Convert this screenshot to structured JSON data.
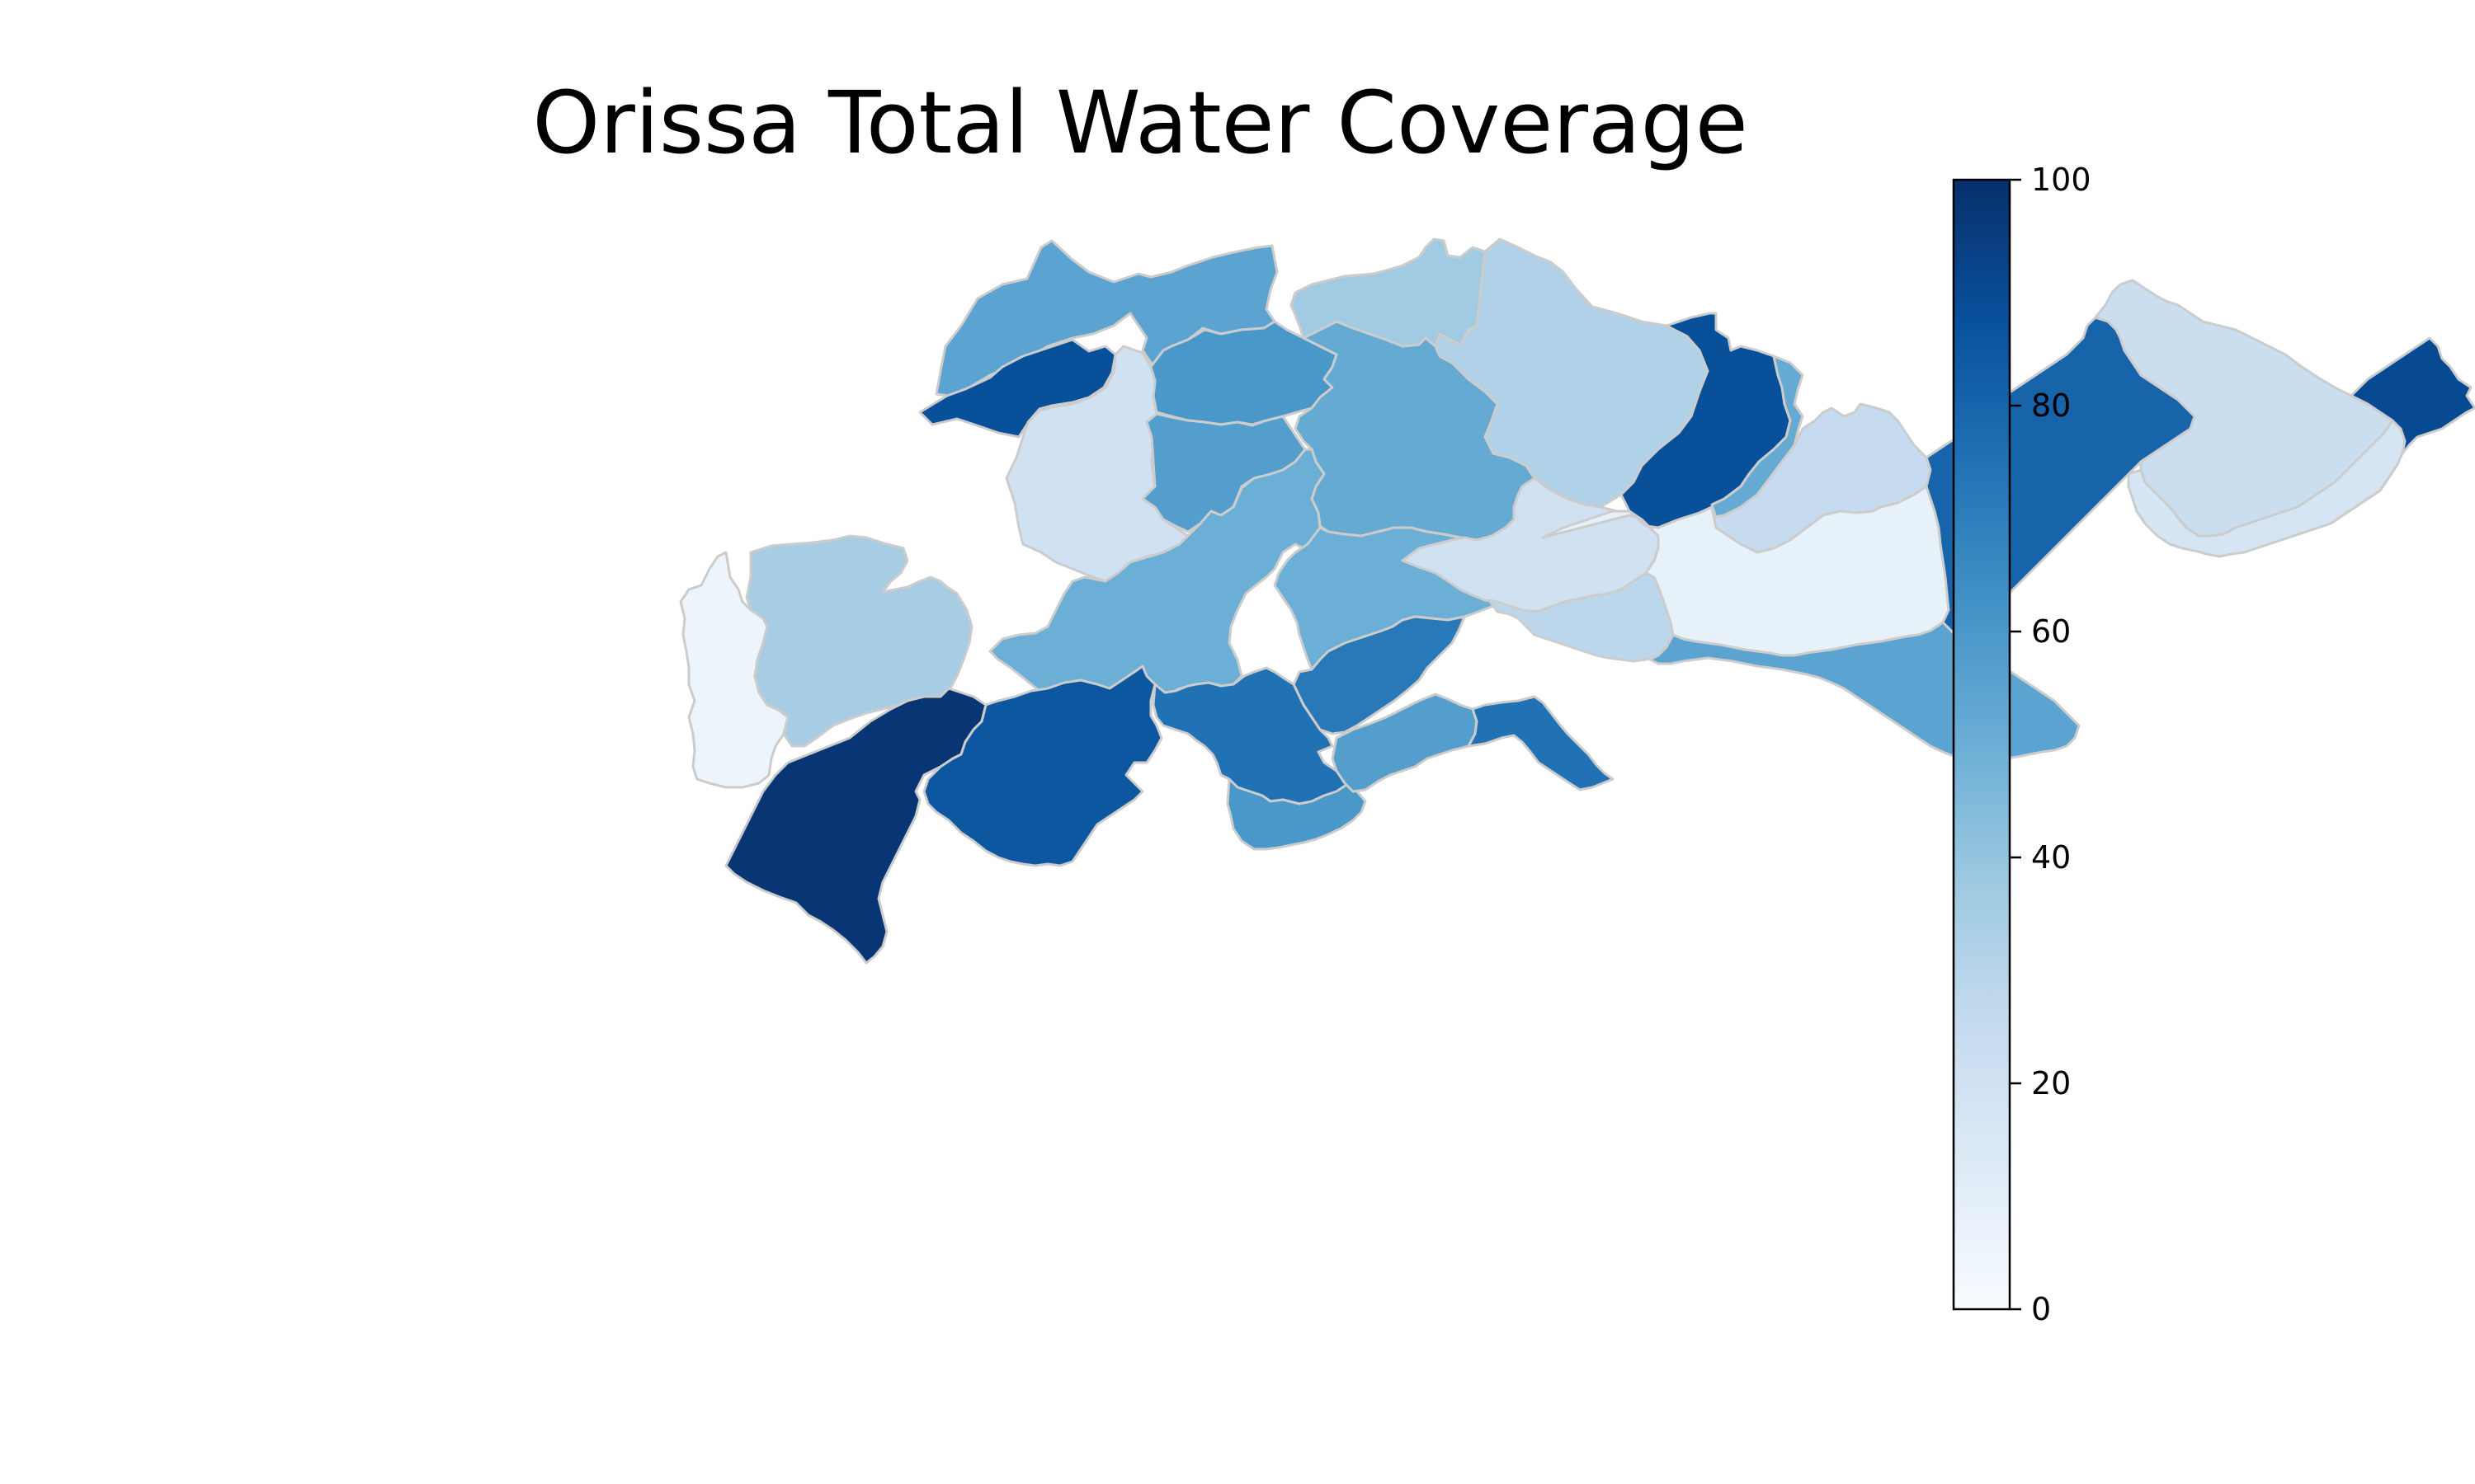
{
  "title": "Orissa Total Water Coverage",
  "colorbar": {
    "min": 0,
    "max": 100,
    "ticks": [
      0,
      20,
      40,
      60,
      80,
      100
    ],
    "colormap": [
      "#f7fbff",
      "#deebf7",
      "#c6dbef",
      "#9ecae1",
      "#6baed6",
      "#4292c6",
      "#2171b5",
      "#08519c",
      "#08306b"
    ]
  },
  "chart_data": {
    "type": "choropleth",
    "title": "Orissa Total Water Coverage",
    "value_range": [
      0,
      100
    ],
    "regions": [
      {
        "value": 55
      },
      {
        "value": 88
      },
      {
        "value": 60
      },
      {
        "value": 20
      },
      {
        "value": 57
      },
      {
        "value": 52
      },
      {
        "value": 32
      },
      {
        "value": 88
      },
      {
        "value": 52
      },
      {
        "value": 25
      },
      {
        "value": 37
      },
      {
        "value": 50
      },
      {
        "value": 50
      },
      {
        "value": 72
      },
      {
        "value": 20
      },
      {
        "value": 5
      },
      {
        "value": 35
      },
      {
        "value": 98
      },
      {
        "value": 85
      },
      {
        "value": 75
      },
      {
        "value": 60
      },
      {
        "value": 57
      },
      {
        "value": 75
      },
      {
        "value": 28
      },
      {
        "value": 8
      },
      {
        "value": 80
      },
      {
        "value": 55
      },
      {
        "value": 23
      },
      {
        "value": 17
      },
      {
        "value": 90
      }
    ]
  }
}
